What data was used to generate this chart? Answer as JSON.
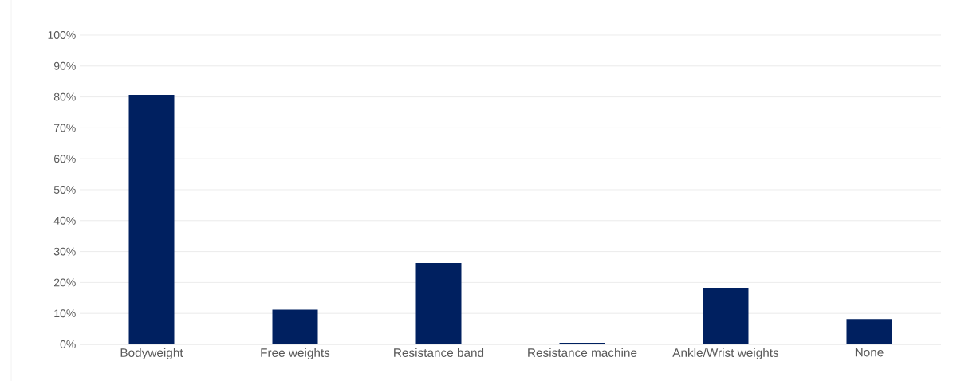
{
  "chart_data": {
    "type": "bar",
    "categories": [
      "Bodyweight",
      "Free weights",
      "Resistance band",
      "Resistance machine",
      "Ankle/Wrist weights",
      "None"
    ],
    "values": [
      80.7,
      11.2,
      26.3,
      0.5,
      18.3,
      8.2
    ],
    "color": "#002060",
    "ylim": [
      0,
      100
    ],
    "yticks": [
      {
        "value": 0,
        "label": "0%"
      },
      {
        "value": 10,
        "label": "10%"
      },
      {
        "value": 20,
        "label": "20%"
      },
      {
        "value": 30,
        "label": "30%"
      },
      {
        "value": 40,
        "label": "40%"
      },
      {
        "value": 50,
        "label": "50%"
      },
      {
        "value": 60,
        "label": "60%"
      },
      {
        "value": 70,
        "label": "70%"
      },
      {
        "value": 80,
        "label": "80%"
      },
      {
        "value": 90,
        "label": "90%"
      },
      {
        "value": 100,
        "label": "100%"
      }
    ],
    "grid": "y"
  }
}
